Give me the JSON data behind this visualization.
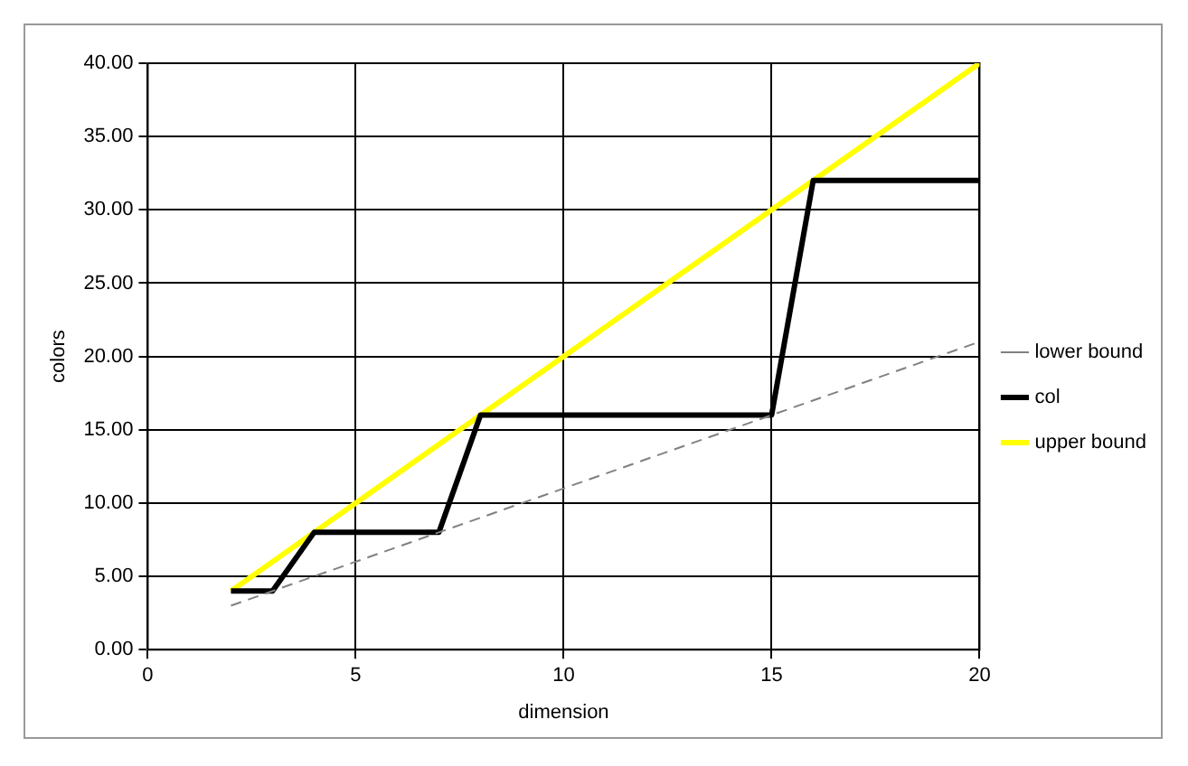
{
  "chart_data": {
    "type": "line",
    "xlabel": "dimension",
    "ylabel": "colors",
    "xlim": [
      0,
      20
    ],
    "xticks": [
      0,
      5,
      10,
      15,
      20
    ],
    "ylim": [
      0,
      40
    ],
    "yticks": [
      {
        "value": 0,
        "label": "0.00"
      },
      {
        "value": 5,
        "label": "5.00"
      },
      {
        "value": 10,
        "label": "10.00"
      },
      {
        "value": 15,
        "label": "15.00"
      },
      {
        "value": 20,
        "label": "20.00"
      },
      {
        "value": 25,
        "label": "25.00"
      },
      {
        "value": 30,
        "label": "30.00"
      },
      {
        "value": 35,
        "label": "35.00"
      },
      {
        "value": 40,
        "label": "40.00"
      }
    ],
    "grid": true,
    "legend": "right",
    "marker": "none",
    "series": [
      {
        "name": "lower bound",
        "color": "#808080",
        "line_style": "dashed",
        "x": [
          2,
          20
        ],
        "values": [
          3,
          21
        ]
      },
      {
        "name": "col",
        "color": "#000000",
        "line_style": "solid",
        "x": [
          2,
          3,
          4,
          7,
          8,
          15,
          16,
          20
        ],
        "values": [
          4,
          4,
          8,
          8,
          16,
          16,
          32,
          32
        ]
      },
      {
        "name": "upper bound",
        "color": "#ffff00",
        "line_style": "solid",
        "x": [
          2,
          20
        ],
        "values": [
          4,
          40
        ]
      }
    ]
  }
}
